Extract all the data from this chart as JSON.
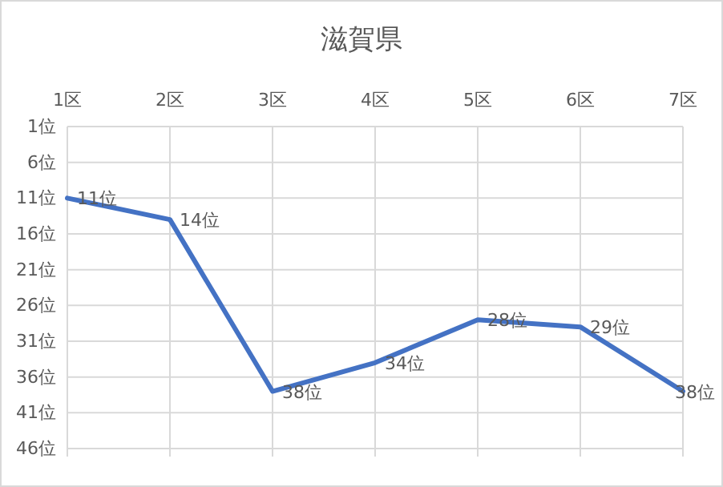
{
  "chart_data": {
    "type": "line",
    "title": "滋賀県",
    "categories": [
      "1区",
      "2区",
      "3区",
      "4区",
      "5区",
      "6区",
      "7区"
    ],
    "series": [
      {
        "color": "#4472c4",
        "values": [
          11,
          14,
          38,
          34,
          28,
          29,
          38
        ],
        "value_labels": [
          "11位",
          "14位",
          "38位",
          "34位",
          "28位",
          "29位",
          "38位"
        ]
      }
    ],
    "ylim": [
      46,
      1
    ],
    "yticks": [
      {
        "value": 1,
        "label": "1位"
      },
      {
        "value": 6,
        "label": "6位"
      },
      {
        "value": 11,
        "label": "11位"
      },
      {
        "value": 16,
        "label": "16位"
      },
      {
        "value": 21,
        "label": "21位"
      },
      {
        "value": 26,
        "label": "26位"
      },
      {
        "value": 31,
        "label": "31位"
      },
      {
        "value": 36,
        "label": "36位"
      },
      {
        "value": 41,
        "label": "41位"
      },
      {
        "value": 46,
        "label": "46位"
      }
    ],
    "grid": true,
    "marker": "none",
    "line_style": "solid"
  }
}
